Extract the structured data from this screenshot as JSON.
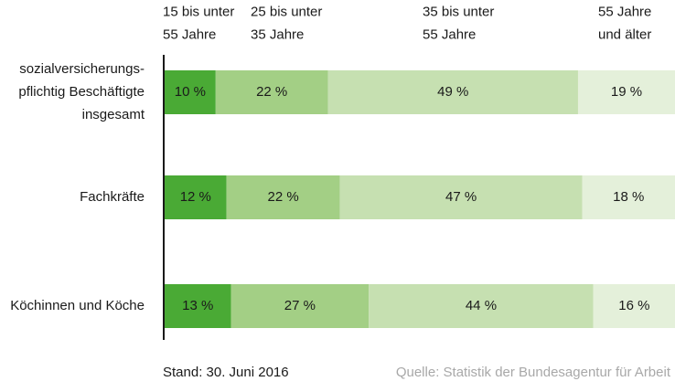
{
  "chart_data": {
    "type": "stacked-bar-horizontal",
    "categories": [
      "sozialversicherungs-\npflichtig Beschäftigte\ninsgesamt",
      "Fachkräfte",
      "Köchinnen und Köche"
    ],
    "series": [
      {
        "name": "15 bis unter\n55 Jahre",
        "color": "#4aaa35",
        "values": [
          10,
          12,
          13
        ],
        "value_labels": [
          "10 %",
          "12 %",
          "13 %"
        ]
      },
      {
        "name": "25 bis unter\n35 Jahre",
        "color": "#a3cf85",
        "values": [
          22,
          22,
          27
        ],
        "value_labels": [
          "22 %",
          "22 %",
          "27 %"
        ]
      },
      {
        "name": "35 bis unter\n55 Jahre",
        "color": "#c6e0b1",
        "values": [
          49,
          47,
          44
        ],
        "value_labels": [
          "49 %",
          "47 %",
          "44 %"
        ]
      },
      {
        "name": "55 Jahre\nund älter",
        "color": "#e4f0da",
        "values": [
          19,
          18,
          16
        ],
        "value_labels": [
          "19 %",
          "18 %",
          "16 %"
        ]
      }
    ],
    "footnote": "Stand: 30. Juni 2016",
    "source": "Quelle: Statistik der Bundesagentur für Arbeit"
  }
}
